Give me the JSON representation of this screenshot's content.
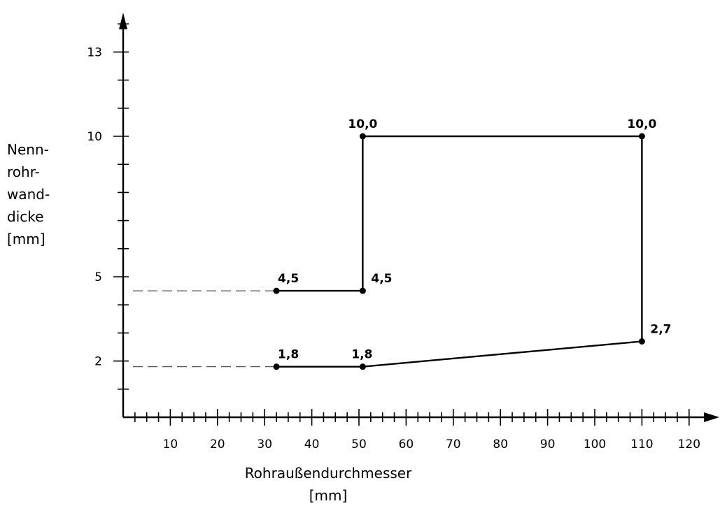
{
  "chart_data": {
    "type": "line",
    "title": "",
    "xlabel": "Rohraußendurchmesser",
    "xunit": "[mm]",
    "ylabel_lines": [
      "Nenn-",
      "rohr-",
      "wand-",
      "dicke",
      "[mm]"
    ],
    "xlim": [
      0,
      125
    ],
    "ylim": [
      0,
      14
    ],
    "x_ticks": [
      10,
      20,
      30,
      40,
      50,
      60,
      70,
      80,
      90,
      100,
      110,
      120
    ],
    "y_ticks": [
      2,
      5,
      10,
      13
    ],
    "polygon": [
      {
        "x": 32.5,
        "y": 4.5,
        "label": "4,5",
        "label_pos": "above"
      },
      {
        "x": 50.8,
        "y": 4.5,
        "label": "4,5",
        "label_pos": "right-above"
      },
      {
        "x": 50.8,
        "y": 10.0,
        "label": "10,0",
        "label_pos": "above"
      },
      {
        "x": 110.0,
        "y": 10.0,
        "label": "10,0",
        "label_pos": "above"
      },
      {
        "x": 110.0,
        "y": 2.7,
        "label": "2,7",
        "label_pos": "right-above"
      },
      {
        "x": 50.8,
        "y": 1.8,
        "label": "1,8",
        "label_pos": "above"
      },
      {
        "x": 32.5,
        "y": 1.8,
        "label": "1,8",
        "label_pos": "above"
      }
    ],
    "open_edge": [
      [
        32.5,
        1.8
      ],
      [
        32.5,
        4.5
      ]
    ],
    "dashed_references": [
      {
        "from_x": 0,
        "to_x": 32.5,
        "y": 4.5
      },
      {
        "from_x": 0,
        "to_x": 32.5,
        "y": 1.8
      }
    ],
    "grid": false,
    "legend": "none"
  }
}
